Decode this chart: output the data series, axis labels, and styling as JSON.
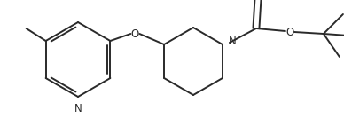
{
  "bg_color": "#ffffff",
  "line_color": "#2a2a2a",
  "line_width": 1.4,
  "font_size": 8.5,
  "figsize": [
    3.88,
    1.34
  ],
  "dpi": 100,
  "xlim": [
    0,
    388
  ],
  "ylim": [
    0,
    134
  ]
}
